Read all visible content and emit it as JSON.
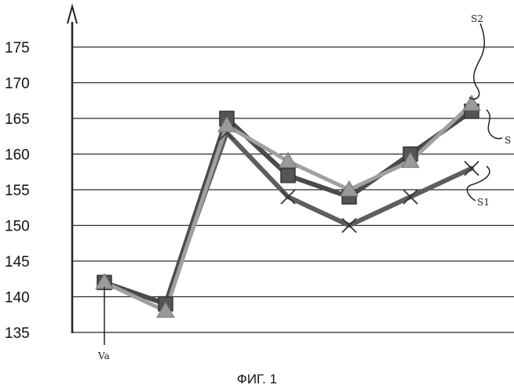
{
  "chart_data": {
    "type": "line",
    "title": "",
    "xlabel": "",
    "ylabel": "",
    "ylim": [
      135,
      175
    ],
    "yticks": [
      135,
      140,
      145,
      150,
      155,
      160,
      165,
      170,
      175
    ],
    "grid": true,
    "x_count": 8,
    "series": [
      {
        "name": "S",
        "values": [
          142,
          139,
          165,
          157,
          154,
          160,
          166,
          null
        ],
        "color": "#4a4a4a",
        "marker": "square"
      },
      {
        "name": "S1",
        "values": [
          142,
          139,
          163,
          154,
          150,
          154,
          158,
          null
        ],
        "color": "#5e5e5e",
        "marker": "x"
      },
      {
        "name": "S2",
        "values": [
          142,
          138,
          164,
          159,
          155,
          159,
          167,
          null
        ],
        "color": "#a0a0a0",
        "marker": "triangle"
      }
    ],
    "annotations": [
      {
        "text": "S2"
      },
      {
        "text": "S"
      },
      {
        "text": "S1"
      },
      {
        "text": "Va"
      }
    ]
  },
  "caption": "ФИГ. 1"
}
